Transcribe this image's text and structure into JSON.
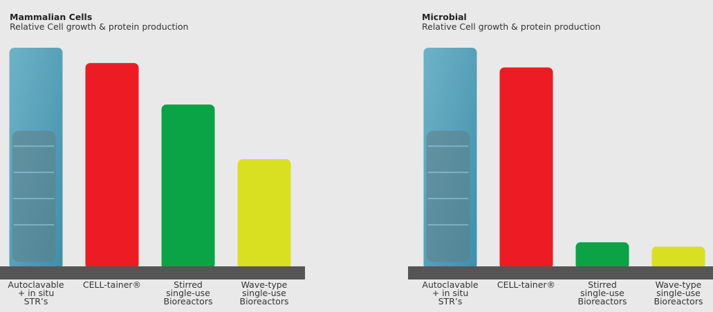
{
  "colors": {
    "background": "#e9e9e9",
    "baseline": "#555555",
    "photo_bar_top": "#6fb2c8",
    "photo_bar_bottom": "#3f8fa9"
  },
  "chart_data": [
    {
      "type": "bar",
      "title": "Mammalian Cells",
      "subtitle": "Relative Cell growth & protein production",
      "categories": [
        "Autoclavable\n+ in situ\nSTR’s",
        "CELL-tainer®",
        "Stirred\nsingle-use\nBioreactors",
        "Wave-type\nsingle-use\nBioreactors"
      ],
      "values": [
        100,
        93,
        74,
        49
      ],
      "colors": [
        "photo-bioreactor",
        "#ed1c24",
        "#0aa345",
        "#d9e021"
      ],
      "ylim": [
        0,
        100
      ],
      "grid": false,
      "xlabel": "",
      "ylabel": ""
    },
    {
      "type": "bar",
      "title": "Microbial",
      "subtitle": "Relative Cell growth & protein production",
      "categories": [
        "Autoclavable\n+ in situ\nSTR’s",
        "CELL-tainer®",
        "Stirred\nsingle-use\nBioreactors",
        "Wave-type\nsingle-use\nBioreactors"
      ],
      "values": [
        100,
        91,
        11,
        9
      ],
      "colors": [
        "photo-bioreactor",
        "#ed1c24",
        "#0aa345",
        "#d9e021"
      ],
      "ylim": [
        0,
        100
      ],
      "grid": false,
      "xlabel": "",
      "ylabel": ""
    }
  ]
}
